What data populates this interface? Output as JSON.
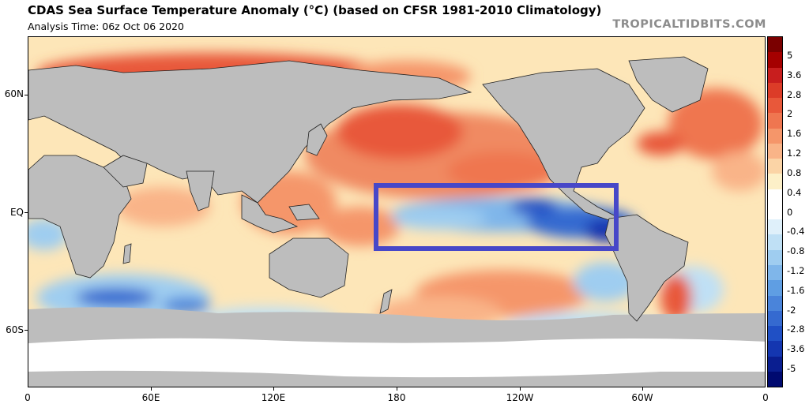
{
  "header": {
    "title": "CDAS Sea Surface Temperature Anomaly (°C) (based on CFSR 1981-2010 Climatology)",
    "subtitle": "Analysis Time: 06z Oct 06 2020",
    "brand": "TROPICALTIDBITS.COM"
  },
  "map": {
    "lat_labels": [
      "60N",
      "EQ",
      "60S"
    ],
    "lon_labels": [
      "0",
      "60E",
      "120E",
      "180",
      "120W",
      "60W",
      "0"
    ],
    "highlight_box": {
      "color": "#4747c8"
    },
    "land_color": "#bdbdbd",
    "sea_ice_color": "#ffffff"
  },
  "colorbar": {
    "labels": [
      "5",
      "3.6",
      "2.8",
      "2",
      "1.6",
      "1.2",
      "0.8",
      "0.4",
      "0",
      "-0.4",
      "-0.8",
      "-1.2",
      "-1.6",
      "-2",
      "-2.8",
      "-3.6",
      "-5"
    ],
    "colors": [
      "#7a0000",
      "#a50000",
      "#c81e1e",
      "#dc3c28",
      "#e8583a",
      "#ef7650",
      "#f5966a",
      "#f9b488",
      "#fbd4a6",
      "#fdf0c8",
      "#ffffff",
      "#ffffff",
      "#dff0fa",
      "#bfe0f5",
      "#9fcdf0",
      "#7fb6ea",
      "#5f9ee3",
      "#4a84da",
      "#356ad0",
      "#2050c5",
      "#1436b0",
      "#0a1e90",
      "#000a70"
    ]
  }
}
